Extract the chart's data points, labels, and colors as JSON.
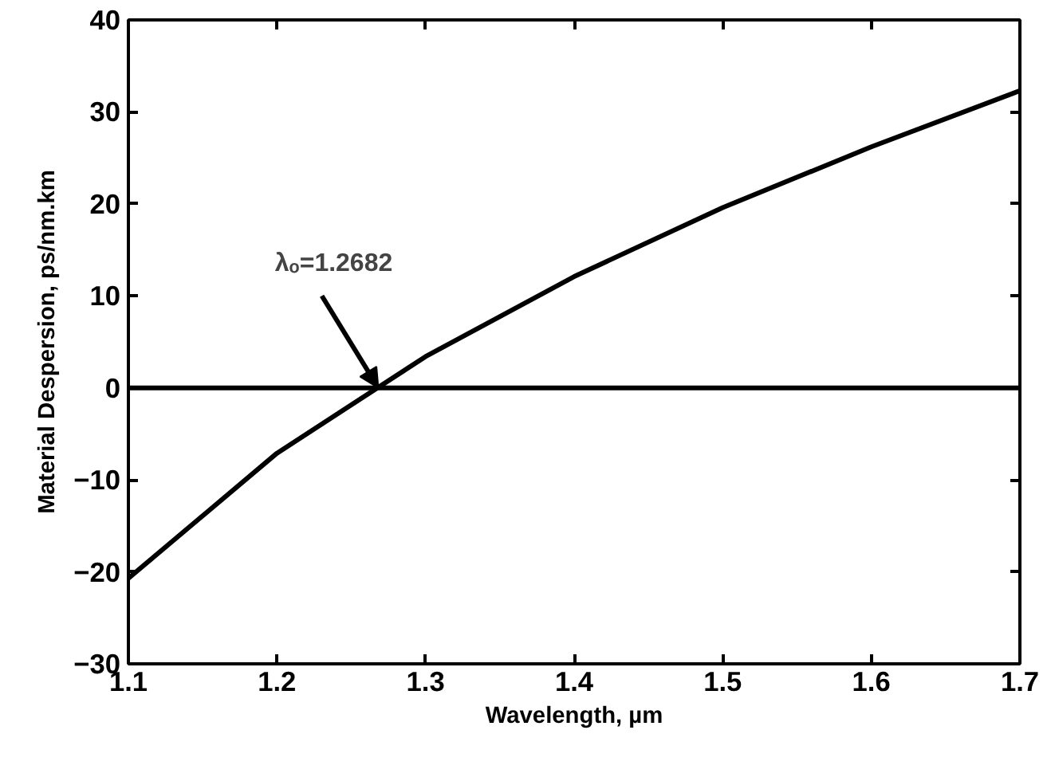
{
  "chart_data": {
    "type": "line",
    "xlabel": "Wavelength, µm",
    "ylabel": "Material Despersion, ps/nm.km",
    "x": [
      1.1,
      1.2,
      1.3,
      1.4,
      1.5,
      1.6,
      1.7
    ],
    "series": [
      {
        "color": "#000000",
        "values": [
          -20.7,
          -7.1,
          3.4,
          12.1,
          19.6,
          26.2,
          32.3
        ]
      }
    ],
    "xlim": [
      1.1,
      1.7
    ],
    "xticks": [
      1.1,
      1.2,
      1.3,
      1.4,
      1.5,
      1.6,
      1.7
    ],
    "ylim": [
      -30,
      40
    ],
    "yticks": [
      -30,
      -20,
      -10,
      0,
      10,
      20,
      30,
      40
    ],
    "ref_lines": [
      {
        "axis": "y",
        "value": 0,
        "color": "#000000"
      }
    ],
    "annotations": [
      {
        "text": "λₒ=1.2682",
        "x": 1.2682,
        "y": 0
      }
    ],
    "grid": false
  }
}
